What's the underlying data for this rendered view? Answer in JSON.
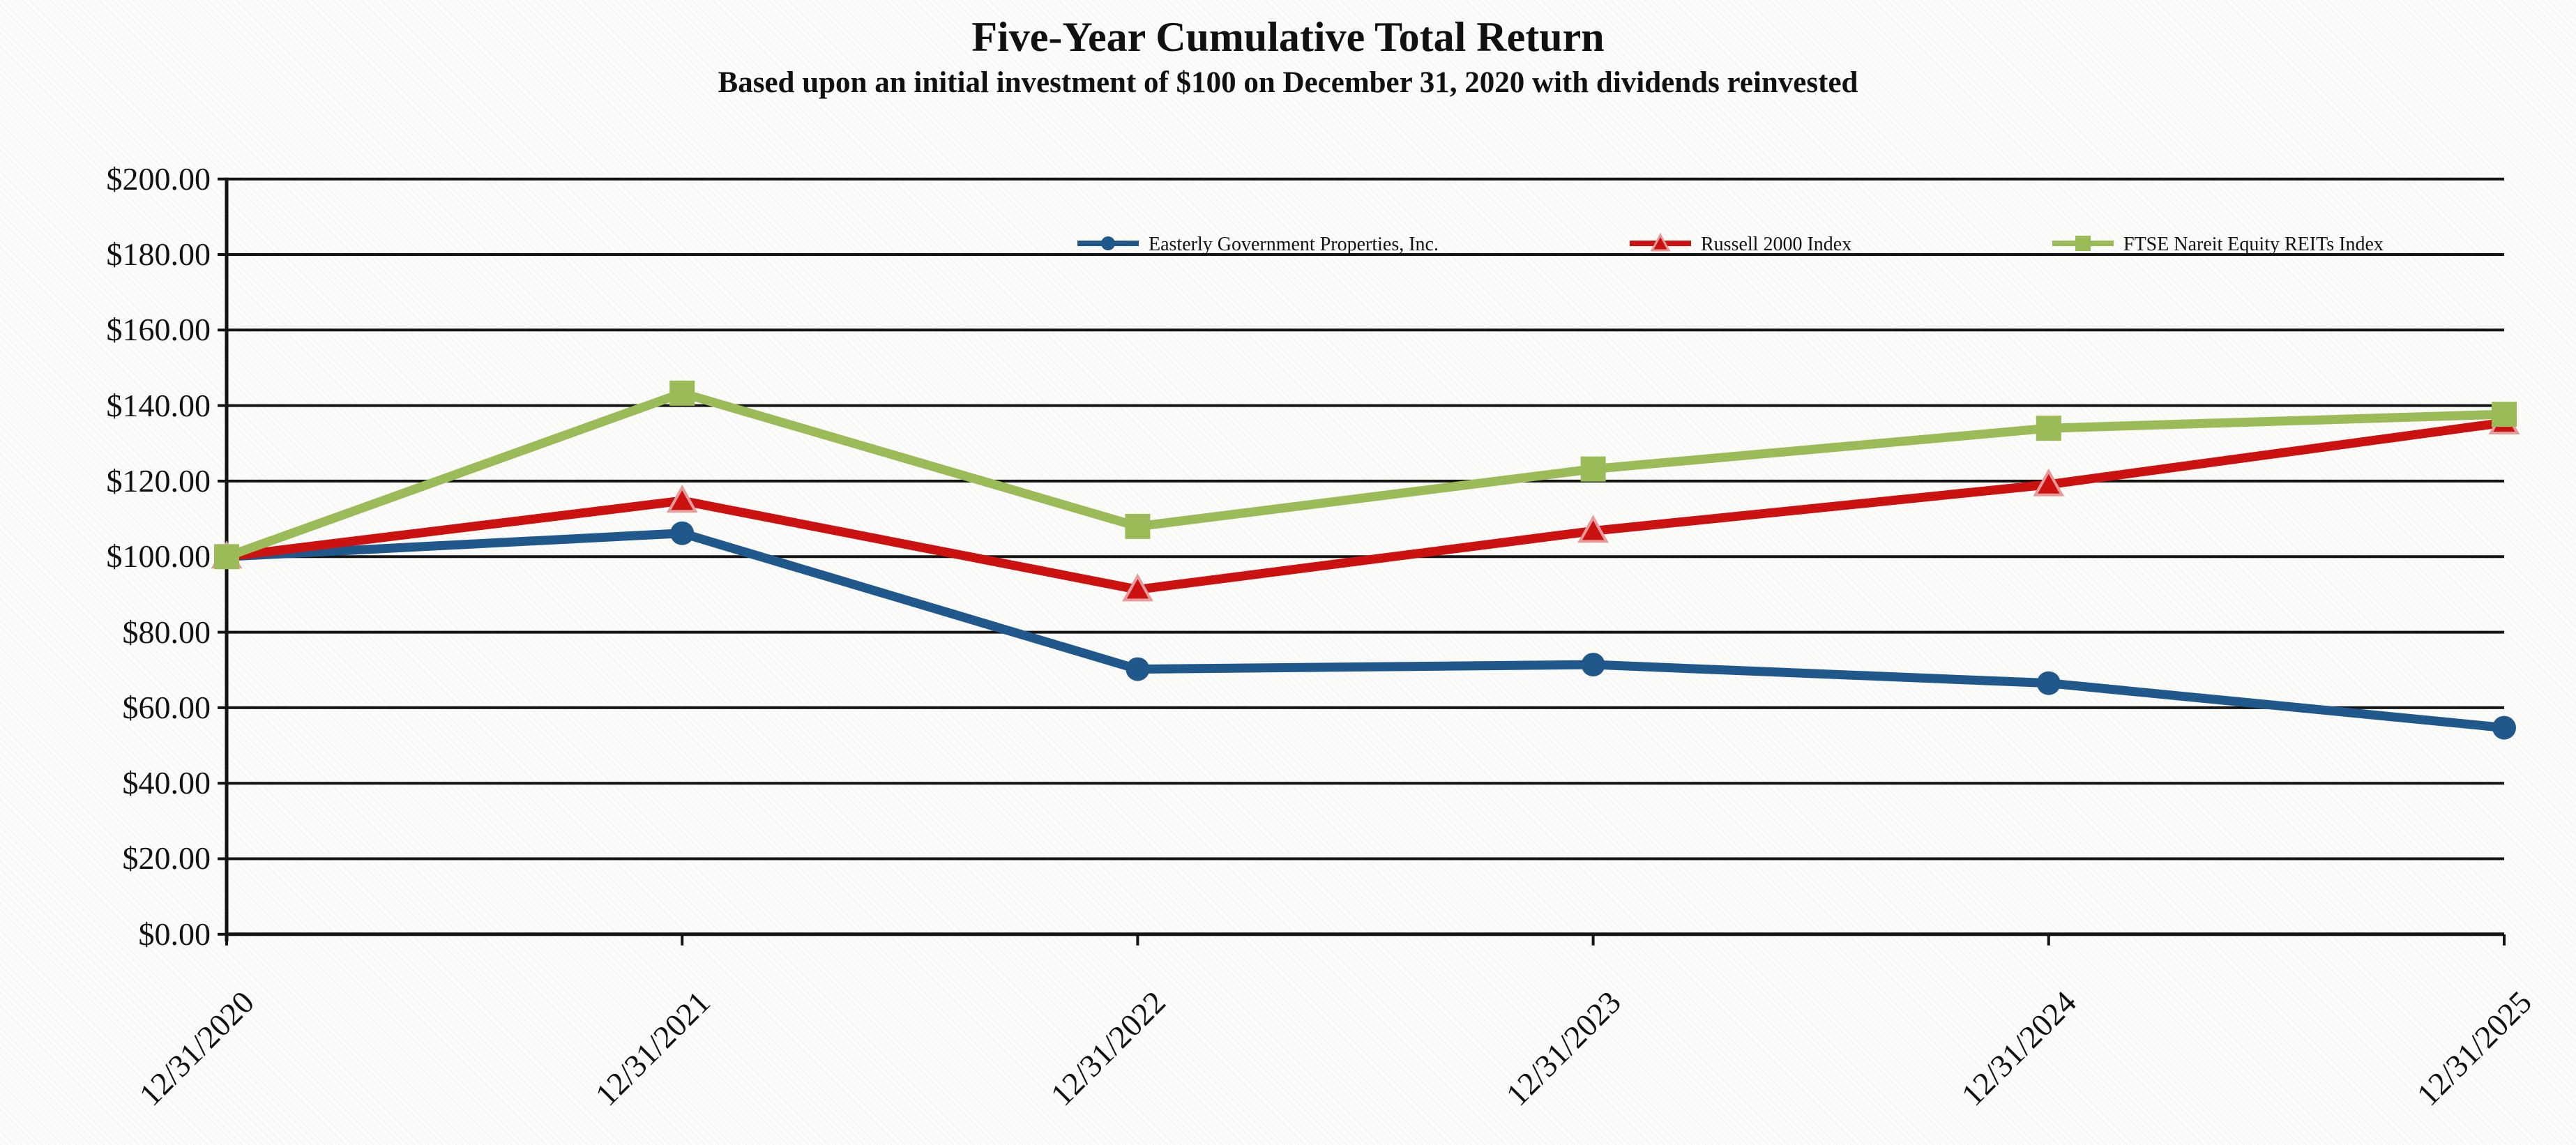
{
  "title": "Five-Year Cumulative Total Return",
  "subtitle": "Based upon an initial investment of $100 on December 31, 2020 with dividends reinvested",
  "chart_data": {
    "type": "line",
    "x": [
      "12/31/2020",
      "12/31/2021",
      "12/31/2022",
      "12/31/2023",
      "12/31/2024",
      "12/31/2025"
    ],
    "series": [
      {
        "name": "Easterly Government Properties, Inc.",
        "marker": "circle",
        "color": "#21588C",
        "values": [
          100.0,
          106.2,
          70.2,
          71.4,
          66.5,
          54.7
        ]
      },
      {
        "name": "Russell 2000 Index",
        "marker": "triangle",
        "color": "#CC1111",
        "marker_edge_color": "#E89B9B",
        "values": [
          100.0,
          114.8,
          91.3,
          106.8,
          119.1,
          135.5
        ]
      },
      {
        "name": "FTSE Nareit Equity REITs Index",
        "marker": "square",
        "color": "#9BBB59",
        "values": [
          100.0,
          143.3,
          108.0,
          123.2,
          134.0,
          137.7
        ]
      }
    ],
    "ylim": [
      0,
      200
    ],
    "ytick_step": 20,
    "ytick_labels": [
      "$0.00",
      "$20.00",
      "$40.00",
      "$60.00",
      "$80.00",
      "$100.00",
      "$120.00",
      "$140.00",
      "$160.00",
      "$180.00",
      "$200.00"
    ],
    "grid": true,
    "gridline_color": "#141414",
    "axis_color": "#141414",
    "legend_position": "top-inside-horizontal"
  }
}
